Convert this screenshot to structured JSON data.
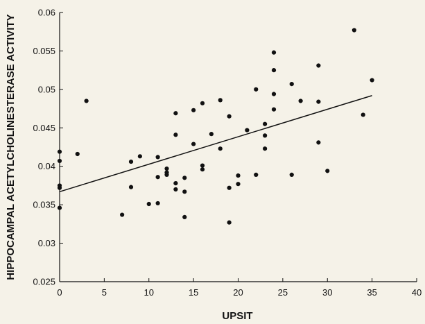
{
  "chart_data": {
    "type": "scatter",
    "title": "",
    "xlabel": "UPSIT",
    "ylabel": "HIPPOCAMPAL ACETYLCHOLINESTERASE ACTIVITY",
    "xlim": [
      0,
      40
    ],
    "ylim": [
      0.025,
      0.06
    ],
    "x_ticks": [
      0,
      5,
      10,
      15,
      20,
      25,
      30,
      35,
      40
    ],
    "y_ticks": [
      0.025,
      0.03,
      0.035,
      0.04,
      0.045,
      0.05,
      0.055,
      0.06
    ],
    "x_tick_labels": [
      "0",
      "5",
      "10",
      "15",
      "20",
      "25",
      "30",
      "35",
      "40"
    ],
    "y_tick_labels": [
      "0.025",
      "0.03",
      "0.035",
      "0.04",
      "0.045",
      "0.05",
      "0.055",
      "0.06"
    ],
    "grid": false,
    "legend": "none",
    "marker_color": "#111111",
    "trendline": {
      "x": [
        0,
        35
      ],
      "y": [
        0.0367,
        0.0492
      ],
      "color": "#111111"
    },
    "points": [
      {
        "x": 0,
        "y": 0.0419
      },
      {
        "x": 0,
        "y": 0.0407
      },
      {
        "x": 0,
        "y": 0.0375
      },
      {
        "x": 0,
        "y": 0.0372
      },
      {
        "x": 0,
        "y": 0.0346
      },
      {
        "x": 2,
        "y": 0.0416
      },
      {
        "x": 3,
        "y": 0.0485
      },
      {
        "x": 7,
        "y": 0.0337
      },
      {
        "x": 8,
        "y": 0.0406
      },
      {
        "x": 8,
        "y": 0.0373
      },
      {
        "x": 9,
        "y": 0.0413
      },
      {
        "x": 10,
        "y": 0.0351
      },
      {
        "x": 11,
        "y": 0.0412
      },
      {
        "x": 11,
        "y": 0.0386
      },
      {
        "x": 11,
        "y": 0.0352
      },
      {
        "x": 12,
        "y": 0.0397
      },
      {
        "x": 12,
        "y": 0.0392
      },
      {
        "x": 12,
        "y": 0.0389
      },
      {
        "x": 13,
        "y": 0.0469
      },
      {
        "x": 13,
        "y": 0.0441
      },
      {
        "x": 13,
        "y": 0.0378
      },
      {
        "x": 13,
        "y": 0.037
      },
      {
        "x": 14,
        "y": 0.0385
      },
      {
        "x": 14,
        "y": 0.0367
      },
      {
        "x": 14,
        "y": 0.0334
      },
      {
        "x": 15,
        "y": 0.0473
      },
      {
        "x": 15,
        "y": 0.0429
      },
      {
        "x": 16,
        "y": 0.0482
      },
      {
        "x": 16,
        "y": 0.0401
      },
      {
        "x": 16,
        "y": 0.0396
      },
      {
        "x": 17,
        "y": 0.0442
      },
      {
        "x": 18,
        "y": 0.0486
      },
      {
        "x": 18,
        "y": 0.0423
      },
      {
        "x": 19,
        "y": 0.0465
      },
      {
        "x": 19,
        "y": 0.0372
      },
      {
        "x": 19,
        "y": 0.0327
      },
      {
        "x": 20,
        "y": 0.0388
      },
      {
        "x": 20,
        "y": 0.0377
      },
      {
        "x": 21,
        "y": 0.0447
      },
      {
        "x": 22,
        "y": 0.05
      },
      {
        "x": 22,
        "y": 0.0389
      },
      {
        "x": 23,
        "y": 0.0455
      },
      {
        "x": 23,
        "y": 0.044
      },
      {
        "x": 23,
        "y": 0.0423
      },
      {
        "x": 24,
        "y": 0.0548
      },
      {
        "x": 24,
        "y": 0.0525
      },
      {
        "x": 24,
        "y": 0.0494
      },
      {
        "x": 24,
        "y": 0.0474
      },
      {
        "x": 26,
        "y": 0.0507
      },
      {
        "x": 26,
        "y": 0.0389
      },
      {
        "x": 27,
        "y": 0.0485
      },
      {
        "x": 29,
        "y": 0.0531
      },
      {
        "x": 29,
        "y": 0.0484
      },
      {
        "x": 29,
        "y": 0.0431
      },
      {
        "x": 30,
        "y": 0.0394
      },
      {
        "x": 33,
        "y": 0.0577
      },
      {
        "x": 34,
        "y": 0.0467
      },
      {
        "x": 35,
        "y": 0.0512
      }
    ]
  }
}
